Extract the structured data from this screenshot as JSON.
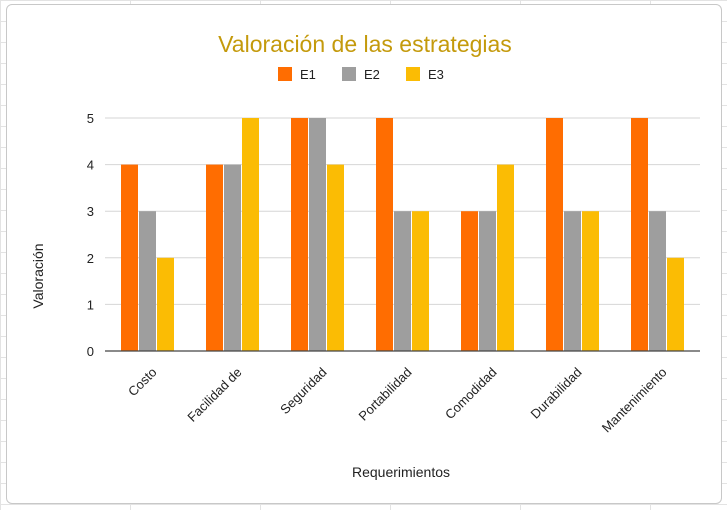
{
  "chart_data": {
    "type": "bar",
    "title": "Valoración de las estrategias",
    "xlabel": "Requerimientos",
    "ylabel": "Valoración",
    "categories": [
      "Costo",
      "Facilidad de",
      "Seguridad",
      "Portabilidad",
      "Comodidad",
      "Durabilidad",
      "Mantenimiento"
    ],
    "series": [
      {
        "name": "E1",
        "color": "#ff6d01",
        "values": [
          4,
          4,
          5,
          5,
          3,
          5,
          5
        ]
      },
      {
        "name": "E2",
        "color": "#9e9e9e",
        "values": [
          3,
          4,
          5,
          3,
          3,
          3,
          3
        ]
      },
      {
        "name": "E3",
        "color": "#fbbc04",
        "values": [
          2,
          5,
          4,
          3,
          4,
          3,
          2
        ]
      }
    ],
    "ylim": [
      0,
      5
    ],
    "yticks": [
      "0",
      "1",
      "2",
      "3",
      "4",
      "5"
    ],
    "grid": true,
    "legend_position": "top"
  }
}
